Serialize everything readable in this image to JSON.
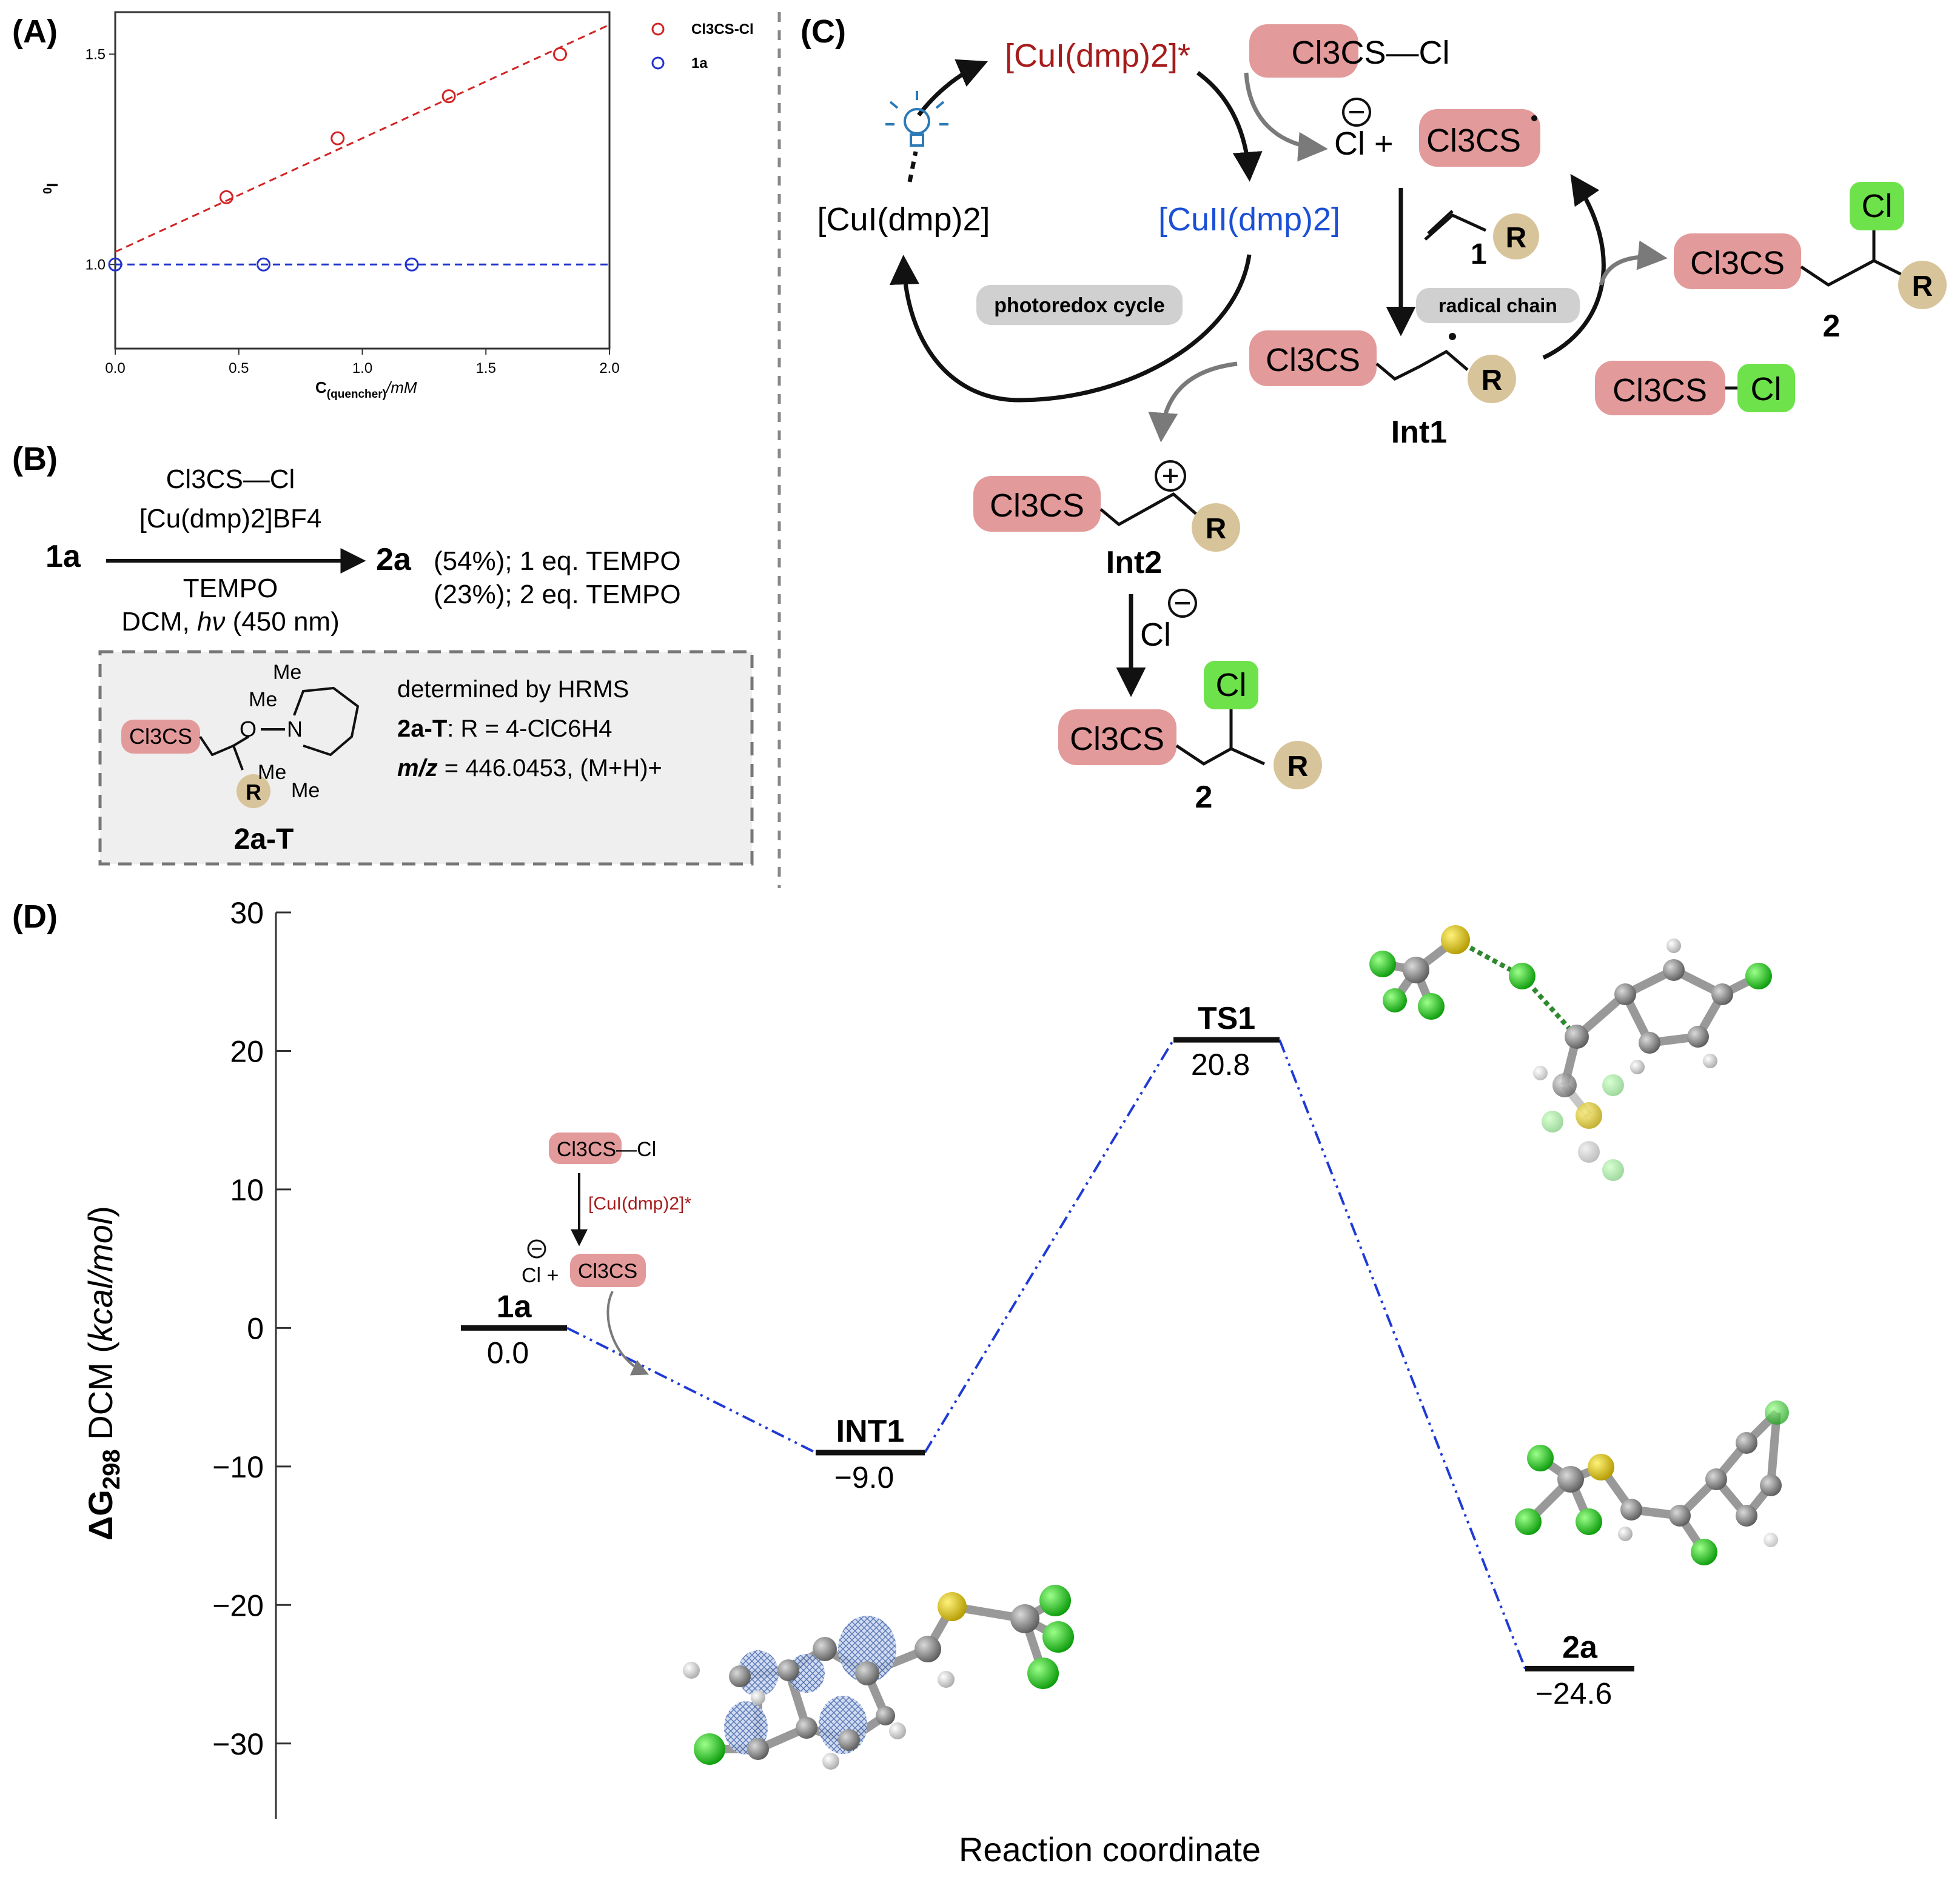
{
  "panels": {
    "a": "(A)",
    "b": "(B)",
    "c": "(C)",
    "d": "(D)"
  },
  "chart_a": {
    "type": "scatter",
    "ylabel_main": "I",
    "ylabel_sup": "0",
    "ylabel_sub": "I",
    "xlabel_main": "C",
    "xlabel_sub": "(quencher)",
    "xlabel_unit": "/mM",
    "legend": [
      {
        "name": "Cl3CS-Cl",
        "color": "#d22424"
      },
      {
        "name": "1a",
        "color": "#2233cc"
      }
    ],
    "xticks": [
      "0.0",
      "0.5",
      "1.0",
      "1.5",
      "2.0"
    ],
    "yticks": [
      "1.0",
      "1.5"
    ]
  },
  "chart_data": [
    {
      "type": "scatter",
      "title": "",
      "xlabel": "C(quencher)/mM",
      "ylabel": "I0/I",
      "xlim": [
        0,
        2.0
      ],
      "ylim": [
        0.8,
        1.6
      ],
      "series": [
        {
          "name": "Cl3CS-Cl",
          "color": "#d22424",
          "x": [
            0.45,
            0.9,
            1.35,
            1.8
          ],
          "y": [
            1.16,
            1.3,
            1.4,
            1.5
          ],
          "fit": [
            1.03,
            1.57
          ]
        },
        {
          "name": "1a",
          "color": "#2233cc",
          "x": [
            0.0,
            0.6,
            1.2
          ],
          "y": [
            1.0,
            1.0,
            1.0
          ],
          "fit": [
            1.0,
            1.0
          ]
        }
      ]
    },
    {
      "type": "line",
      "title": "",
      "xlabel": "Reaction coordinate",
      "ylabel": "ΔG298 DCM (kcal/mol)",
      "ylim": [
        -35,
        30
      ],
      "yticks": [
        "30",
        "20",
        "10",
        "0",
        "−10",
        "−20",
        "−30"
      ],
      "categories": [
        "1a",
        "INT1",
        "TS1",
        "2a"
      ],
      "values": [
        0.0,
        -9.0,
        20.8,
        -24.6
      ],
      "value_labels": [
        "0.0",
        "−9.0",
        "20.8",
        "−24.6"
      ]
    }
  ],
  "panel_b": {
    "reagent": "Cl3CS—Cl",
    "catalyst": "[Cu(dmp)2]BF4",
    "additive": "TEMPO",
    "conditions_1": "DCM,",
    "conditions_hv": "hν",
    "conditions_2": "(450 nm)",
    "start": "1a",
    "product": "2a",
    "yield1": "(54%); 1 eq. TEMPO",
    "yield2": "(23%); 2 eq. TEMPO",
    "box_line1": "determined by HRMS",
    "box_line2_a": "2a-T",
    "box_line2_b": ": R = 4-ClC6H4",
    "box_line3_a": "m/z",
    "box_line3_b": " = 446.0453, (M+H)+",
    "adduct_label": "2a-T",
    "me": "Me",
    "n": "N",
    "o": "O",
    "cl3cs": "Cl3CS",
    "r": "R"
  },
  "panel_c": {
    "cu_excited": "[CuI(dmp)2]*",
    "cu_ground": "[CuI(dmp)2]",
    "cu_two": "[CuII(dmp)2]",
    "photoredox": "photoredox cycle",
    "radical_chain": "radical chain",
    "cl3cs_cl": "Cl3CS—Cl",
    "cl_plus": "Cl + ",
    "cl3cs_radical": "Cl3CS",
    "alkene_num": "1",
    "int1": "Int1",
    "int2": "Int2",
    "product_num": "2",
    "cl_anion": "Cl",
    "cl": "Cl",
    "r": "R"
  },
  "panel_d": {
    "inset_reagent": "Cl3CS—Cl",
    "inset_cat": "[CuI(dmp)2]*",
    "inset_cl": "Cl + ",
    "inset_radical": "Cl3CS"
  }
}
